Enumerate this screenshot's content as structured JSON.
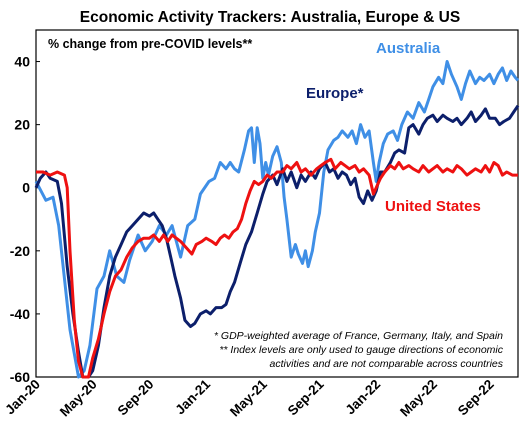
{
  "chart_data": {
    "type": "line",
    "title": "Economic Activity Trackers: Australia, Europe & US",
    "subtitle": "% change from pre-COVID levels**",
    "ylim": [
      -60,
      50
    ],
    "yticks": [
      40,
      20,
      0,
      -20,
      -40,
      -60
    ],
    "x_tick_labels": [
      "Jan-20",
      "May-20",
      "Sep-20",
      "Jan-21",
      "May-21",
      "Sep-21",
      "Jan-22",
      "May-22",
      "Sep-22"
    ],
    "x_tick_positions": [
      0,
      4,
      8,
      12,
      16,
      20,
      24,
      28,
      32
    ],
    "xlim": [
      0,
      34
    ],
    "grid": false,
    "series": [
      {
        "name": "Australia",
        "color": "#3f8fe6",
        "points": [
          [
            0,
            2
          ],
          [
            0.7,
            -4
          ],
          [
            1.2,
            -3
          ],
          [
            1.6,
            -12
          ],
          [
            2.4,
            -45
          ],
          [
            3.0,
            -60
          ],
          [
            3.4,
            -58
          ],
          [
            3.8,
            -50
          ],
          [
            4.3,
            -32
          ],
          [
            4.8,
            -28
          ],
          [
            5.2,
            -20
          ],
          [
            5.7,
            -28
          ],
          [
            6.2,
            -30
          ],
          [
            6.6,
            -23
          ],
          [
            7.2,
            -15
          ],
          [
            7.7,
            -20
          ],
          [
            8.2,
            -17
          ],
          [
            8.7,
            -12
          ],
          [
            9.2,
            -15
          ],
          [
            9.6,
            -12
          ],
          [
            10.2,
            -22
          ],
          [
            10.7,
            -12
          ],
          [
            11.2,
            -10
          ],
          [
            11.6,
            -2
          ],
          [
            12.2,
            2
          ],
          [
            12.6,
            3
          ],
          [
            13.0,
            8
          ],
          [
            13.4,
            6
          ],
          [
            13.7,
            8
          ],
          [
            14.0,
            6
          ],
          [
            14.3,
            5
          ],
          [
            14.7,
            12
          ],
          [
            15.0,
            18
          ],
          [
            15.2,
            19
          ],
          [
            15.4,
            8
          ],
          [
            15.6,
            19
          ],
          [
            15.8,
            14
          ],
          [
            16.0,
            3
          ],
          [
            16.2,
            8
          ],
          [
            16.4,
            4
          ],
          [
            16.7,
            10
          ],
          [
            17.0,
            13
          ],
          [
            17.3,
            8
          ],
          [
            17.5,
            -3
          ],
          [
            17.7,
            -10
          ],
          [
            18.0,
            -22
          ],
          [
            18.3,
            -18
          ],
          [
            18.5,
            -21
          ],
          [
            18.8,
            -24
          ],
          [
            19.0,
            -20
          ],
          [
            19.2,
            -25
          ],
          [
            19.5,
            -20
          ],
          [
            19.7,
            -14
          ],
          [
            20.0,
            -8
          ],
          [
            20.3,
            5
          ],
          [
            20.6,
            12
          ],
          [
            21.0,
            15
          ],
          [
            21.3,
            16
          ],
          [
            21.6,
            18
          ],
          [
            22.0,
            16
          ],
          [
            22.3,
            18
          ],
          [
            22.6,
            14
          ],
          [
            22.9,
            20
          ],
          [
            23.2,
            16
          ],
          [
            23.5,
            18
          ],
          [
            23.8,
            8
          ],
          [
            24.0,
            2
          ],
          [
            24.2,
            8
          ],
          [
            24.5,
            14
          ],
          [
            24.8,
            17
          ],
          [
            25.2,
            18
          ],
          [
            25.5,
            15
          ],
          [
            25.8,
            20
          ],
          [
            26.2,
            24
          ],
          [
            26.6,
            22
          ],
          [
            27.0,
            27
          ],
          [
            27.4,
            24
          ],
          [
            27.7,
            28
          ],
          [
            28.0,
            32
          ],
          [
            28.4,
            35
          ],
          [
            28.7,
            33
          ],
          [
            29.0,
            40
          ],
          [
            29.3,
            36
          ],
          [
            29.7,
            32
          ],
          [
            30.0,
            28
          ],
          [
            30.3,
            33
          ],
          [
            30.6,
            37
          ],
          [
            31.0,
            33
          ],
          [
            31.3,
            35
          ],
          [
            31.6,
            34
          ],
          [
            32.0,
            36
          ],
          [
            32.3,
            33
          ],
          [
            32.6,
            36
          ],
          [
            32.9,
            38
          ],
          [
            33.2,
            34
          ],
          [
            33.5,
            37
          ],
          [
            33.8,
            35
          ],
          [
            34.0,
            34
          ]
        ]
      },
      {
        "name": "Europe*",
        "color": "#0c1f6b",
        "points": [
          [
            0,
            0
          ],
          [
            0.3,
            3
          ],
          [
            0.7,
            5
          ],
          [
            1.0,
            3
          ],
          [
            1.5,
            2
          ],
          [
            1.8,
            -5
          ],
          [
            2.2,
            -25
          ],
          [
            2.6,
            -40
          ],
          [
            3.0,
            -52
          ],
          [
            3.3,
            -60
          ],
          [
            3.7,
            -60
          ],
          [
            4.0,
            -58
          ],
          [
            4.4,
            -50
          ],
          [
            4.8,
            -38
          ],
          [
            5.2,
            -28
          ],
          [
            5.6,
            -22
          ],
          [
            6.0,
            -18
          ],
          [
            6.4,
            -14
          ],
          [
            6.8,
            -12
          ],
          [
            7.2,
            -10
          ],
          [
            7.6,
            -8
          ],
          [
            8.0,
            -9
          ],
          [
            8.3,
            -8
          ],
          [
            8.6,
            -10
          ],
          [
            8.9,
            -12
          ],
          [
            9.2,
            -16
          ],
          [
            9.5,
            -22
          ],
          [
            9.8,
            -28
          ],
          [
            10.2,
            -35
          ],
          [
            10.5,
            -42
          ],
          [
            10.9,
            -44
          ],
          [
            11.2,
            -43
          ],
          [
            11.6,
            -40
          ],
          [
            12.0,
            -39
          ],
          [
            12.3,
            -40
          ],
          [
            12.7,
            -38
          ],
          [
            13.1,
            -38
          ],
          [
            13.4,
            -37
          ],
          [
            13.7,
            -33
          ],
          [
            14.0,
            -30
          ],
          [
            14.4,
            -24
          ],
          [
            14.8,
            -18
          ],
          [
            15.2,
            -14
          ],
          [
            15.6,
            -8
          ],
          [
            16.0,
            -2
          ],
          [
            16.3,
            2
          ],
          [
            16.7,
            4
          ],
          [
            17.0,
            1
          ],
          [
            17.4,
            6
          ],
          [
            17.7,
            2
          ],
          [
            18.0,
            5
          ],
          [
            18.4,
            0
          ],
          [
            18.7,
            4
          ],
          [
            19.0,
            2
          ],
          [
            19.4,
            5
          ],
          [
            19.7,
            3
          ],
          [
            20.0,
            6
          ],
          [
            20.4,
            8
          ],
          [
            20.7,
            5
          ],
          [
            21.0,
            6
          ],
          [
            21.3,
            3
          ],
          [
            21.6,
            5
          ],
          [
            21.9,
            4
          ],
          [
            22.2,
            1
          ],
          [
            22.5,
            3
          ],
          [
            22.8,
            -3
          ],
          [
            23.1,
            -5
          ],
          [
            23.4,
            -1
          ],
          [
            23.7,
            -4
          ],
          [
            24.0,
            -1
          ],
          [
            24.3,
            5
          ],
          [
            24.6,
            5
          ],
          [
            25.0,
            8
          ],
          [
            25.3,
            11
          ],
          [
            25.6,
            12
          ],
          [
            26.0,
            11
          ],
          [
            26.3,
            19
          ],
          [
            26.6,
            20
          ],
          [
            27.0,
            17
          ],
          [
            27.3,
            20
          ],
          [
            27.6,
            22
          ],
          [
            28.0,
            23
          ],
          [
            28.3,
            21
          ],
          [
            28.7,
            23
          ],
          [
            29.0,
            22
          ],
          [
            29.4,
            21
          ],
          [
            29.7,
            22
          ],
          [
            30.0,
            20
          ],
          [
            30.4,
            22
          ],
          [
            30.7,
            24
          ],
          [
            31.0,
            21
          ],
          [
            31.4,
            23
          ],
          [
            31.7,
            25
          ],
          [
            32.0,
            22
          ],
          [
            32.4,
            22
          ],
          [
            32.7,
            20
          ],
          [
            33.0,
            21
          ],
          [
            33.4,
            22
          ],
          [
            33.7,
            24
          ],
          [
            34.0,
            26
          ]
        ]
      },
      {
        "name": "United States",
        "color": "#ee1111",
        "points": [
          [
            0,
            5
          ],
          [
            0.5,
            5
          ],
          [
            1.0,
            4
          ],
          [
            1.5,
            5
          ],
          [
            2.0,
            4
          ],
          [
            2.2,
            0
          ],
          [
            2.4,
            -20
          ],
          [
            2.7,
            -42
          ],
          [
            3.0,
            -55
          ],
          [
            3.3,
            -60
          ],
          [
            3.7,
            -60
          ],
          [
            4.0,
            -54
          ],
          [
            4.4,
            -48
          ],
          [
            4.8,
            -40
          ],
          [
            5.2,
            -33
          ],
          [
            5.6,
            -28
          ],
          [
            6.0,
            -26
          ],
          [
            6.4,
            -22
          ],
          [
            6.8,
            -19
          ],
          [
            7.2,
            -17
          ],
          [
            7.6,
            -16
          ],
          [
            8.0,
            -16
          ],
          [
            8.3,
            -15
          ],
          [
            8.7,
            -17
          ],
          [
            9.0,
            -15
          ],
          [
            9.3,
            -17
          ],
          [
            9.6,
            -15
          ],
          [
            9.9,
            -16
          ],
          [
            10.2,
            -17
          ],
          [
            10.6,
            -19
          ],
          [
            11.0,
            -21
          ],
          [
            11.3,
            -18
          ],
          [
            11.7,
            -17
          ],
          [
            12.0,
            -16
          ],
          [
            12.4,
            -17
          ],
          [
            12.7,
            -18
          ],
          [
            13.0,
            -16
          ],
          [
            13.3,
            -15
          ],
          [
            13.6,
            -16
          ],
          [
            13.9,
            -14
          ],
          [
            14.2,
            -13
          ],
          [
            14.5,
            -10
          ],
          [
            14.8,
            -5
          ],
          [
            15.1,
            -1
          ],
          [
            15.4,
            2
          ],
          [
            15.7,
            1
          ],
          [
            16.0,
            2
          ],
          [
            16.3,
            4
          ],
          [
            16.6,
            3
          ],
          [
            17.0,
            5
          ],
          [
            17.4,
            5
          ],
          [
            17.7,
            7
          ],
          [
            18.0,
            6
          ],
          [
            18.4,
            8
          ],
          [
            18.7,
            5
          ],
          [
            19.0,
            6
          ],
          [
            19.4,
            4
          ],
          [
            19.8,
            6
          ],
          [
            20.1,
            7
          ],
          [
            20.4,
            8
          ],
          [
            20.8,
            9
          ],
          [
            21.1,
            6
          ],
          [
            21.5,
            8
          ],
          [
            21.8,
            7
          ],
          [
            22.1,
            6
          ],
          [
            22.5,
            7
          ],
          [
            22.8,
            5
          ],
          [
            23.1,
            6
          ],
          [
            23.5,
            4
          ],
          [
            23.8,
            -2
          ],
          [
            24.0,
            0
          ],
          [
            24.3,
            3
          ],
          [
            24.6,
            5
          ],
          [
            25.0,
            7
          ],
          [
            25.3,
            6
          ],
          [
            25.6,
            8
          ],
          [
            25.9,
            6
          ],
          [
            26.3,
            7
          ],
          [
            26.6,
            6
          ],
          [
            27.0,
            5
          ],
          [
            27.3,
            7
          ],
          [
            27.7,
            5
          ],
          [
            28.0,
            6
          ],
          [
            28.3,
            7
          ],
          [
            28.7,
            5
          ],
          [
            29.0,
            6
          ],
          [
            29.4,
            5
          ],
          [
            29.7,
            7
          ],
          [
            30.0,
            6
          ],
          [
            30.4,
            4
          ],
          [
            30.7,
            5
          ],
          [
            31.0,
            6
          ],
          [
            31.4,
            5
          ],
          [
            31.7,
            7
          ],
          [
            32.0,
            5
          ],
          [
            32.3,
            8
          ],
          [
            32.6,
            7
          ],
          [
            32.9,
            4
          ],
          [
            33.2,
            5
          ],
          [
            33.6,
            4
          ],
          [
            34.0,
            4
          ]
        ]
      }
    ],
    "annotations": {
      "label_australia": "Australia",
      "label_europe": "Europe*",
      "label_us": "United States",
      "note_1": "* GDP-weighted average of France, Germany, Italy, and Spain",
      "note_2": "** Index levels are only used to gauge directions of economic",
      "note_3": "activities and are not comparable across countries"
    }
  }
}
